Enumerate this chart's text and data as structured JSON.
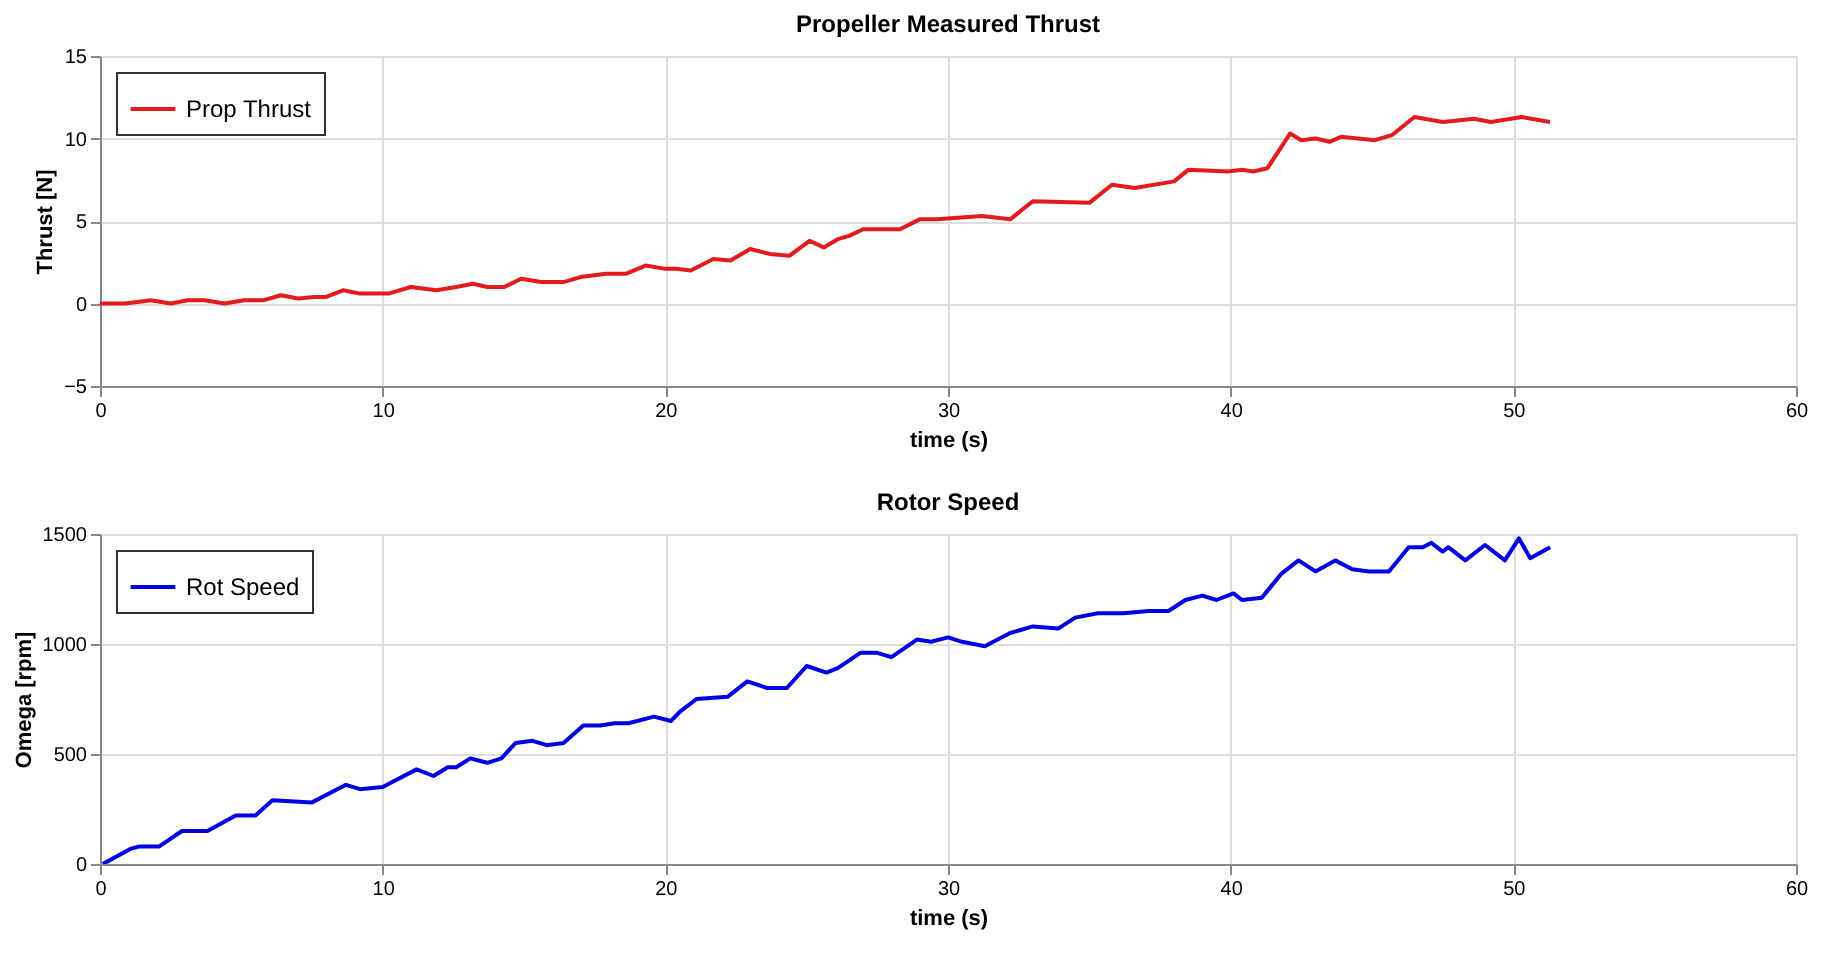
{
  "chart_data": [
    {
      "type": "line",
      "title": "Propeller Measured Thrust",
      "xlabel": "time (s)",
      "ylabel": "Thrust [N]",
      "xlim": [
        0,
        60
      ],
      "xticks": [
        0,
        10,
        20,
        30,
        40,
        50,
        60
      ],
      "ylim": [
        -5,
        15
      ],
      "yticks": [
        -5,
        0,
        5,
        10,
        15
      ],
      "grid": true,
      "legend": "top left",
      "line_style": "solid",
      "marker": "none",
      "series": [
        {
          "name": "Prop Thrust",
          "color": "#e41a1c",
          "x": [
            0,
            0.9,
            1.8,
            2.5,
            3.1,
            3.7,
            4.4,
            5.1,
            5.8,
            6.4,
            7.0,
            7.6,
            8.0,
            8.6,
            9.2,
            10.2,
            11.0,
            11.9,
            12.6,
            13.2,
            13.7,
            14.3,
            14.9,
            15.6,
            16.4,
            17.0,
            17.9,
            18.6,
            19.3,
            20.0,
            20.4,
            20.9,
            21.7,
            22.3,
            23.0,
            23.7,
            24.4,
            25.1,
            25.6,
            26.1,
            26.5,
            27.0,
            28.3,
            29.0,
            29.6,
            31.2,
            32.2,
            33.0,
            35.0,
            35.8,
            36.6,
            38.0,
            38.5,
            39.9,
            40.4,
            40.8,
            41.3,
            42.1,
            42.5,
            43.0,
            43.5,
            43.9,
            45.1,
            45.7,
            46.5,
            47.5,
            48.1,
            48.6,
            49.2,
            50.3,
            51.3
          ],
          "values": [
            0,
            0,
            0.2,
            0,
            0.2,
            0.2,
            0,
            0.2,
            0.2,
            0.5,
            0.3,
            0.4,
            0.4,
            0.8,
            0.6,
            0.6,
            1.0,
            0.8,
            1.0,
            1.2,
            1.0,
            1.0,
            1.5,
            1.3,
            1.3,
            1.6,
            1.8,
            1.8,
            2.3,
            2.1,
            2.1,
            2.0,
            2.7,
            2.6,
            3.3,
            3.0,
            2.9,
            3.8,
            3.4,
            3.9,
            4.1,
            4.5,
            4.5,
            5.1,
            5.1,
            5.3,
            5.1,
            6.2,
            6.1,
            7.2,
            7.0,
            7.4,
            8.1,
            8.0,
            8.1,
            8.0,
            8.2,
            10.3,
            9.9,
            10.0,
            9.8,
            10.1,
            9.9,
            10.2,
            11.3,
            11.0,
            11.1,
            11.2,
            11.0,
            11.3,
            11.0
          ]
        }
      ]
    },
    {
      "type": "line",
      "title": "Rotor Speed",
      "xlabel": "time (s)",
      "ylabel": "Omega [rpm]",
      "xlim": [
        0,
        60
      ],
      "xticks": [
        0,
        10,
        20,
        30,
        40,
        50,
        60
      ],
      "ylim": [
        0,
        1500
      ],
      "yticks": [
        0,
        500,
        1000,
        1500
      ],
      "grid": true,
      "legend": "top left",
      "line_style": "solid",
      "marker": "none",
      "series": [
        {
          "name": "Rot Speed",
          "color": "#0000e6",
          "x": [
            0.1,
            1.1,
            1.4,
            2.1,
            2.9,
            3.8,
            4.8,
            5.5,
            6.1,
            7.5,
            8.7,
            9.2,
            10.0,
            11.2,
            11.8,
            12.3,
            12.6,
            13.1,
            13.7,
            14.2,
            14.7,
            15.3,
            15.8,
            16.4,
            17.1,
            17.7,
            18.2,
            18.7,
            19.6,
            20.2,
            20.5,
            21.1,
            22.2,
            22.9,
            23.6,
            24.3,
            25.0,
            25.7,
            26.1,
            26.9,
            27.5,
            28.0,
            28.9,
            29.4,
            30.0,
            30.5,
            31.3,
            32.2,
            33.0,
            33.9,
            34.5,
            35.3,
            36.2,
            37.1,
            37.8,
            38.4,
            39.0,
            39.5,
            40.1,
            40.4,
            41.1,
            41.8,
            42.4,
            43.0,
            43.7,
            44.3,
            44.9,
            45.6,
            46.3,
            46.8,
            47.1,
            47.5,
            47.7,
            48.3,
            49.0,
            49.7,
            50.2,
            50.6,
            51.3
          ],
          "values": [
            0,
            70,
            80,
            80,
            150,
            150,
            220,
            220,
            290,
            280,
            360,
            340,
            350,
            430,
            400,
            440,
            440,
            480,
            460,
            480,
            550,
            560,
            540,
            550,
            630,
            630,
            640,
            640,
            670,
            650,
            690,
            750,
            760,
            830,
            800,
            800,
            900,
            870,
            890,
            960,
            960,
            940,
            1020,
            1010,
            1030,
            1010,
            990,
            1050,
            1080,
            1070,
            1120,
            1140,
            1140,
            1150,
            1150,
            1200,
            1220,
            1200,
            1230,
            1200,
            1210,
            1320,
            1380,
            1330,
            1380,
            1340,
            1330,
            1330,
            1440,
            1440,
            1460,
            1420,
            1440,
            1380,
            1450,
            1380,
            1480,
            1390,
            1440
          ]
        }
      ]
    }
  ]
}
